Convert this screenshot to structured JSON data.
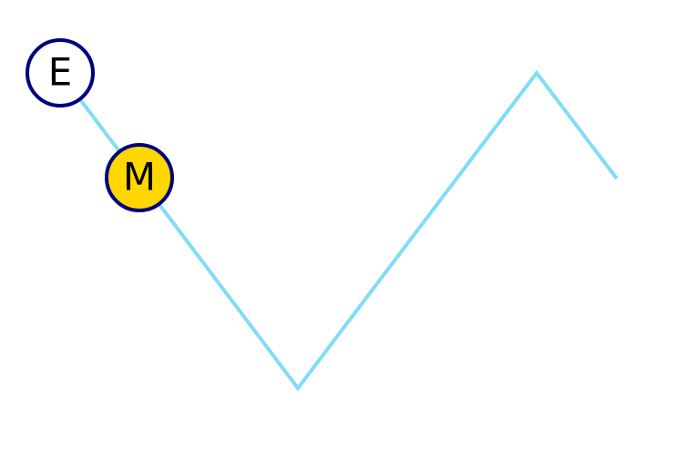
{
  "colors": {
    "line": "#80dcf8",
    "node_stroke": "#000080",
    "node_fill_default": "#ffffff",
    "node_fill_highlight": "#ffd700"
  },
  "nodes": [
    {
      "id": "E",
      "label": "E",
      "highlighted": false
    },
    {
      "id": "M",
      "label": "M",
      "highlighted": true
    }
  ]
}
